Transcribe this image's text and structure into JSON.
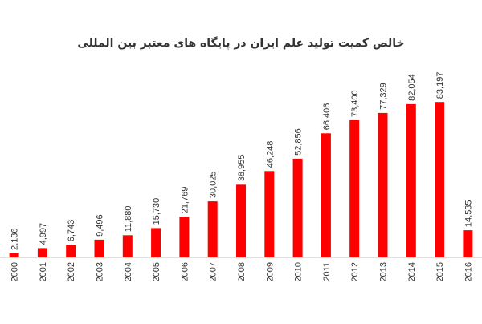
{
  "chart_data": {
    "type": "bar",
    "title": "خالص کمیت تولید علم ایران  در پایگاه های معتبر بین المللی",
    "xlabel": "",
    "ylabel": "",
    "categories": [
      "2000",
      "2001",
      "2002",
      "2003",
      "2004",
      "2005",
      "2006",
      "2007",
      "2008",
      "2009",
      "2010",
      "2011",
      "2012",
      "2013",
      "2014",
      "2015",
      "2016"
    ],
    "values": [
      2136,
      4997,
      6743,
      9496,
      11880,
      15730,
      21769,
      30025,
      38955,
      46248,
      52856,
      66406,
      73400,
      77329,
      82054,
      83197,
      14535
    ],
    "value_labels": [
      "2,136",
      "4,997",
      "6,743",
      "9,496",
      "11,880",
      "15,730",
      "21,769",
      "30,025",
      "38,955",
      "46,248",
      "52,856",
      "66,406",
      "73,400",
      "77,329",
      "82,054",
      "83,197",
      "14,535"
    ],
    "ylim": [
      0,
      85000
    ],
    "grid": false,
    "legend": "none",
    "colors": {
      "bar": "#ff0000",
      "text": "#333333",
      "axis": "#bfbfbf"
    }
  }
}
